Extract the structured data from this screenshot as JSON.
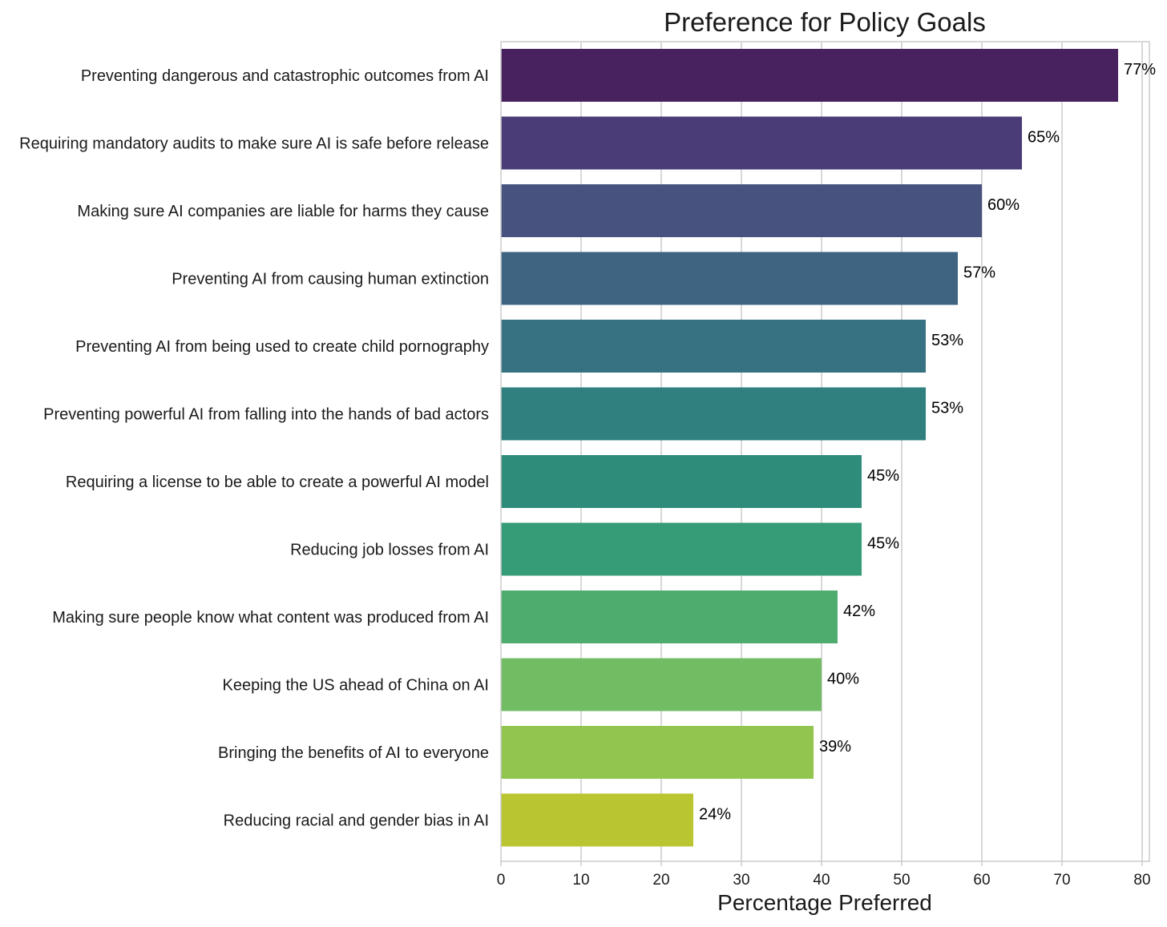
{
  "chart_data": {
    "type": "bar",
    "orientation": "horizontal",
    "title": "Preference for Policy Goals",
    "xlabel": "Percentage Preferred",
    "ylabel": "",
    "xlim": [
      0,
      81
    ],
    "xticks": [
      0,
      10,
      20,
      30,
      40,
      50,
      60,
      70,
      80
    ],
    "grid": true,
    "categories": [
      "Preventing dangerous and catastrophic outcomes from AI",
      "Requiring mandatory audits to make sure AI is safe before release",
      "Making sure AI companies are liable for harms they cause",
      "Preventing AI from causing human extinction",
      "Preventing AI from being used to create child pornography",
      "Preventing powerful AI from falling into the hands of bad actors",
      "Requiring a license to be able to create a powerful AI model",
      "Reducing job losses from AI",
      "Making sure people know what content was produced from AI",
      "Keeping the US ahead of China on AI",
      "Bringing the benefits of AI to everyone",
      "Reducing racial and gender bias in AI"
    ],
    "values": [
      77,
      65,
      60,
      57,
      53,
      53,
      45,
      45,
      42,
      40,
      39,
      24
    ],
    "value_labels": [
      "77%",
      "65%",
      "60%",
      "57%",
      "53%",
      "53%",
      "45%",
      "45%",
      "42%",
      "40%",
      "39%",
      "24%"
    ],
    "colors": [
      "#48215f",
      "#4a3d77",
      "#48527f",
      "#3e6482",
      "#367282",
      "#2f807e",
      "#2e8c7b",
      "#359c77",
      "#4fac6f",
      "#72bd64",
      "#92c550",
      "#bac631"
    ]
  }
}
